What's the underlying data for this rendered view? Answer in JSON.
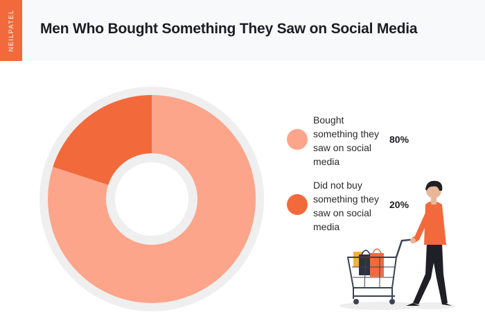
{
  "brand": "NEILPATEL",
  "chart_data": {
    "type": "pie",
    "title": "Men Who Bought Something They Saw on Social Media",
    "categories": [
      "Bought something they saw on social media",
      "Did not buy something they saw on social media"
    ],
    "values": [
      80,
      20
    ],
    "value_labels": [
      "80%",
      "20%"
    ],
    "colors": [
      "#fca58a",
      "#f26a3b"
    ],
    "ring_color": "#efefef",
    "legend": "right"
  }
}
